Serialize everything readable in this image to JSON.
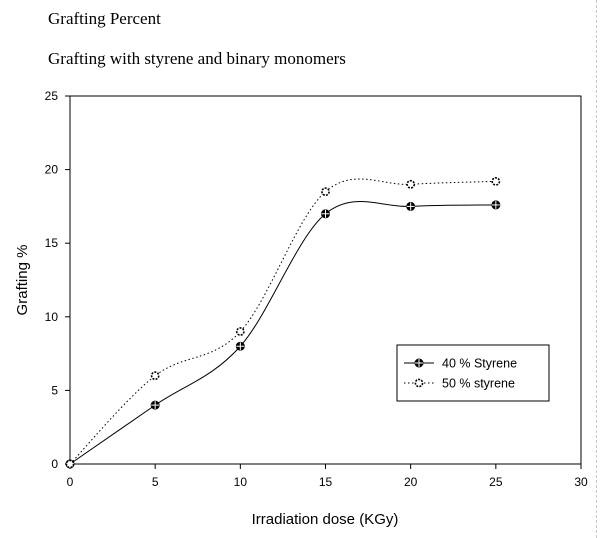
{
  "headings": {
    "line1": "Grafting Percent",
    "line2": "Grafting with styrene and binary monomers"
  },
  "chart_data": {
    "type": "line",
    "title": "",
    "xlabel": "Irradiation dose (KGy)",
    "ylabel": "Grafting %",
    "xlim": [
      0,
      30
    ],
    "ylim": [
      0,
      25
    ],
    "x_ticks": [
      0,
      5,
      10,
      15,
      20,
      25,
      30
    ],
    "y_ticks": [
      0,
      5,
      10,
      15,
      20,
      25
    ],
    "x_tick_labels": [
      "0",
      "5",
      "10",
      "15",
      "20",
      "25",
      "30"
    ],
    "y_tick_labels": [
      "0",
      "5",
      "10",
      "15",
      "20",
      "25"
    ],
    "grid": false,
    "legend_position": "lower-right",
    "series": [
      {
        "name": "40 % Styrene",
        "x": [
          0,
          5,
          10,
          15,
          20,
          25
        ],
        "y": [
          0,
          4,
          8,
          17,
          17.5,
          17.6
        ],
        "line_style": "solid",
        "marker": "filled-circle",
        "color": "#000000"
      },
      {
        "name": "50 % styrene",
        "x": [
          0,
          5,
          10,
          15,
          20,
          25
        ],
        "y": [
          0,
          6,
          9,
          18.5,
          19,
          19.2
        ],
        "line_style": "dotted",
        "marker": "open-circle",
        "color": "#000000"
      }
    ]
  }
}
